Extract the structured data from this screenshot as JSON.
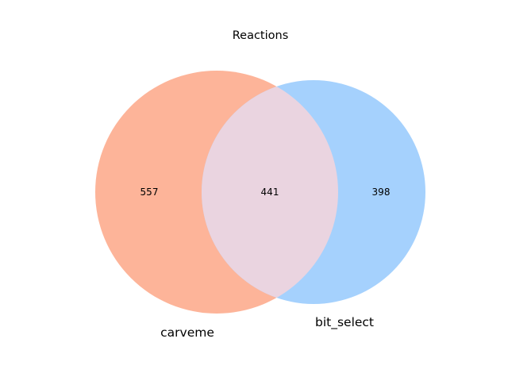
{
  "chart_data": {
    "type": "venn",
    "title": "Reactions",
    "sets": [
      {
        "name": "carveme",
        "only_count": 557,
        "color": "#fdb499"
      },
      {
        "name": "bit_select",
        "only_count": 398,
        "color": "#a5d1fd"
      }
    ],
    "intersection": {
      "count": 441,
      "color": "#ead4e0"
    },
    "labels": {
      "set_a": "carveme",
      "set_b": "bit_select",
      "a_only": "557",
      "overlap": "441",
      "b_only": "398"
    }
  }
}
